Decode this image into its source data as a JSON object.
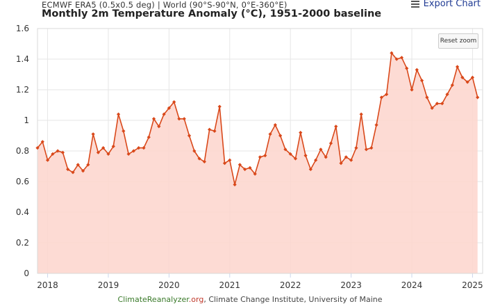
{
  "header": {
    "subtitle": "ECMWF ERA5 (0.5x0.5 deg) | World (90°S-90°N, 0°E-360°E)",
    "title": "Monthly 2m Temperature Anomaly (°C), 1951-2000 baseline",
    "export_label": "Export Chart",
    "export_icon": "hamburger-menu-icon"
  },
  "controls": {
    "reset_zoom_label": "Reset zoom"
  },
  "credit": {
    "site": "ClimateReanalyzer",
    "tld": ".org",
    "rest": ", Climate Change Institute, University of Maine"
  },
  "colors": {
    "line": "#d9481a",
    "fill": "#fdd5cc",
    "grid": "#e6e6e6"
  },
  "chart_data": {
    "type": "area",
    "x_start": "2017-11",
    "x_end": "2025-03",
    "ylim": [
      0,
      1.6
    ],
    "yticks": [
      "0",
      "0.2",
      "0.4",
      "0.6",
      "0.8",
      "1",
      "1.2",
      "1.4",
      "1.6"
    ],
    "xticks": [
      "2018",
      "2019",
      "2020",
      "2021",
      "2022",
      "2023",
      "2024",
      "2025"
    ],
    "grid": true,
    "series": [
      {
        "values": [
          0.82,
          0.86,
          0.74,
          0.78,
          0.8,
          0.79,
          0.68,
          0.66,
          0.71,
          0.67,
          0.71,
          0.91,
          0.79,
          0.82,
          0.78,
          0.83,
          1.04,
          0.93,
          0.78,
          0.8,
          0.82,
          0.82,
          0.89,
          1.01,
          0.96,
          1.04,
          1.08,
          1.12,
          1.01,
          1.01,
          0.9,
          0.8,
          0.75,
          0.73,
          0.94,
          0.93,
          1.09,
          0.72,
          0.74,
          0.58,
          0.71,
          0.68,
          0.69,
          0.65,
          0.76,
          0.77,
          0.91,
          0.97,
          0.9,
          0.81,
          0.78,
          0.75,
          0.92,
          0.77,
          0.68,
          0.74,
          0.81,
          0.76,
          0.85,
          0.96,
          0.72,
          0.76,
          0.74,
          0.82,
          1.04,
          0.81,
          0.82,
          0.97,
          1.15,
          1.17,
          1.44,
          1.4,
          1.41,
          1.34,
          1.2,
          1.33,
          1.26,
          1.15,
          1.08,
          1.11,
          1.11,
          1.17,
          1.23,
          1.35,
          1.28,
          1.25,
          1.28,
          1.15
        ]
      }
    ]
  }
}
